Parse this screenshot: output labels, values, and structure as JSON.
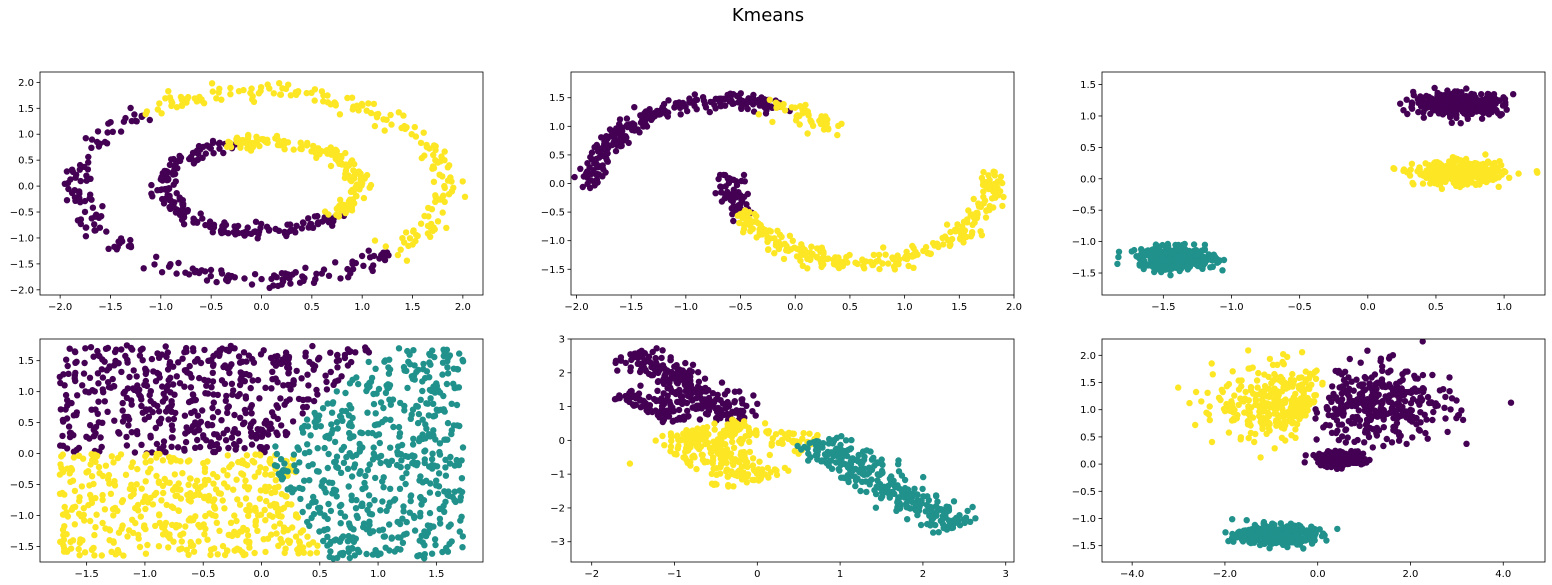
{
  "figure": {
    "title": "Kmeans"
  },
  "palette": {
    "purple": "#440154",
    "teal": "#21918c",
    "yellow": "#fde725"
  },
  "chart_data": [
    {
      "type": "scatter",
      "name": "circles",
      "xlim": [
        -2.2,
        2.2
      ],
      "ylim": [
        -2.1,
        2.2
      ],
      "xticks": [
        -2.0,
        -1.5,
        -1.0,
        -0.5,
        0.0,
        0.5,
        1.0,
        1.5,
        2.0
      ],
      "yticks": [
        -2.0,
        -1.5,
        -1.0,
        -0.5,
        0.0,
        0.5,
        1.0,
        1.5,
        2.0
      ],
      "tick_decimals": 1,
      "clusters": [
        {
          "color": "purple",
          "shape": "arc",
          "cx": 0,
          "cy": 0,
          "r": 1.82,
          "a0": 130,
          "a1": 315,
          "noise": 0.08,
          "n": 180
        },
        {
          "color": "yellow",
          "shape": "arc",
          "cx": 0,
          "cy": 0,
          "r": 1.82,
          "a0": -45,
          "a1": 130,
          "noise": 0.08,
          "n": 180
        },
        {
          "color": "purple",
          "shape": "ellipse_arc",
          "cx": 0,
          "cy": 0,
          "rx": 0.95,
          "ry": 0.88,
          "a0": 110,
          "a1": 320,
          "noise": 0.06,
          "n": 200
        },
        {
          "color": "yellow",
          "shape": "ellipse_arc",
          "cx": 0,
          "cy": 0,
          "rx": 0.95,
          "ry": 0.88,
          "a0": -40,
          "a1": 110,
          "noise": 0.06,
          "n": 160
        }
      ]
    },
    {
      "type": "scatter",
      "name": "moons",
      "xlim": [
        -2.05,
        2.0
      ],
      "ylim": [
        -1.95,
        1.95
      ],
      "xticks": [
        -2.0,
        -1.5,
        -1.0,
        -0.5,
        0.0,
        0.5,
        1.0,
        1.5,
        2.0
      ],
      "yticks": [
        -1.5,
        -1.0,
        -0.5,
        0.0,
        0.5,
        1.0,
        1.5
      ],
      "tick_decimals": 1,
      "clusters": [
        {
          "color": "purple",
          "shape": "moon_upper",
          "t0": 0.0,
          "t1": 0.62,
          "noise": 0.07,
          "n": 260
        },
        {
          "color": "yellow",
          "shape": "moon_upper",
          "t0": 0.62,
          "t1": 0.78,
          "noise": 0.07,
          "n": 50
        },
        {
          "color": "purple",
          "shape": "moon_lower",
          "t0": 0.0,
          "t1": 0.14,
          "noise": 0.07,
          "n": 60
        },
        {
          "color": "yellow",
          "shape": "moon_lower",
          "t0": 0.14,
          "t1": 1.0,
          "noise": 0.07,
          "n": 300
        }
      ]
    },
    {
      "type": "scatter",
      "name": "blobs",
      "xlim": [
        -1.95,
        1.3
      ],
      "ylim": [
        -1.85,
        1.7
      ],
      "xticks": [
        -1.5,
        -1.0,
        -0.5,
        0.0,
        0.5,
        1.0
      ],
      "yticks": [
        -1.5,
        -1.0,
        -0.5,
        0.0,
        0.5,
        1.0,
        1.5
      ],
      "tick_decimals": 1,
      "clusters": [
        {
          "color": "purple",
          "shape": "blob",
          "cx": 0.67,
          "cy": 1.19,
          "sx": 0.16,
          "sy": 0.09,
          "n": 380
        },
        {
          "color": "yellow",
          "shape": "blob",
          "cx": 0.67,
          "cy": 0.09,
          "sx": 0.16,
          "sy": 0.09,
          "n": 380
        },
        {
          "color": "teal",
          "shape": "blob",
          "cx": -1.4,
          "cy": -1.27,
          "sx": 0.14,
          "sy": 0.09,
          "n": 380
        }
      ]
    },
    {
      "type": "scatter",
      "name": "uniform",
      "xlim": [
        -1.9,
        1.9
      ],
      "ylim": [
        -1.75,
        1.85
      ],
      "xticks": [
        -1.5,
        -1.0,
        -0.5,
        0.0,
        0.5,
        1.0,
        1.5
      ],
      "yticks": [
        -1.5,
        -1.0,
        -0.5,
        0.0,
        0.5,
        1.0,
        1.5
      ],
      "tick_decimals": 1,
      "clusters": [
        {
          "color": "purple",
          "shape": "uniform_region",
          "xr": [
            -1.73,
            1.0
          ],
          "yr": [
            0.0,
            1.75
          ],
          "region": "upper_left",
          "n": 520
        },
        {
          "color": "yellow",
          "shape": "uniform_region",
          "xr": [
            -1.73,
            0.5
          ],
          "yr": [
            -1.65,
            0.0
          ],
          "region": "lower_left",
          "n": 460
        },
        {
          "color": "teal",
          "shape": "uniform_region",
          "xr": [
            0.0,
            1.73
          ],
          "yr": [
            -1.7,
            1.7
          ],
          "region": "right",
          "n": 560
        }
      ]
    },
    {
      "type": "scatter",
      "name": "anisotropic",
      "xlim": [
        -2.25,
        3.1
      ],
      "ylim": [
        -3.6,
        3.0
      ],
      "xticks": [
        -2,
        -1,
        0,
        1,
        2,
        3
      ],
      "yticks": [
        -3,
        -2,
        -1,
        0,
        1,
        2,
        3
      ],
      "tick_decimals": 0,
      "clusters": [
        {
          "color": "purple",
          "shape": "line_blob",
          "x0": -1.5,
          "y0": 2.6,
          "x1": -0.2,
          "y1": 0.6,
          "width": 0.18,
          "n": 260
        },
        {
          "color": "purple",
          "shape": "line_blob",
          "x0": -1.6,
          "y0": 1.4,
          "x1": -0.9,
          "y1": 0.6,
          "width": 0.12,
          "n": 80
        },
        {
          "color": "yellow",
          "shape": "line_blob",
          "x0": -0.9,
          "y0": 0.3,
          "x1": 0.0,
          "y1": -1.2,
          "width": 0.22,
          "n": 220
        },
        {
          "color": "yellow",
          "shape": "line_blob",
          "x0": -0.4,
          "y0": 0.4,
          "x1": 0.7,
          "y1": -0.1,
          "width": 0.15,
          "n": 80
        },
        {
          "color": "teal",
          "shape": "line_blob",
          "x0": 0.7,
          "y0": 0.0,
          "x1": 2.4,
          "y1": -2.6,
          "width": 0.18,
          "n": 300
        }
      ]
    },
    {
      "type": "scatter",
      "name": "varied",
      "xlim": [
        -4.65,
        4.9
      ],
      "ylim": [
        -1.8,
        2.3
      ],
      "xticks": [
        -4,
        -2,
        0,
        2,
        4
      ],
      "yticks": [
        -1.5,
        -1.0,
        -0.5,
        0.0,
        0.5,
        1.0,
        1.5,
        2.0
      ],
      "tick_decimals": 1,
      "clusters": [
        {
          "color": "yellow",
          "shape": "blob_split",
          "cx": -0.6,
          "cy": 1.1,
          "sx": 0.8,
          "sy": 0.35,
          "keep": "left",
          "split_x": -0.1,
          "n": 300
        },
        {
          "color": "purple",
          "shape": "blob_split",
          "cx": 1.3,
          "cy": 1.1,
          "sx": 0.8,
          "sy": 0.35,
          "keep": "right",
          "split_x": 0.0,
          "n": 340
        },
        {
          "color": "purple",
          "shape": "blob",
          "cx": 0.5,
          "cy": 0.09,
          "sx": 0.25,
          "sy": 0.06,
          "n": 260
        },
        {
          "color": "teal",
          "shape": "blob",
          "cx": -0.9,
          "cy": -1.3,
          "sx": 0.4,
          "sy": 0.09,
          "n": 380
        }
      ]
    }
  ]
}
